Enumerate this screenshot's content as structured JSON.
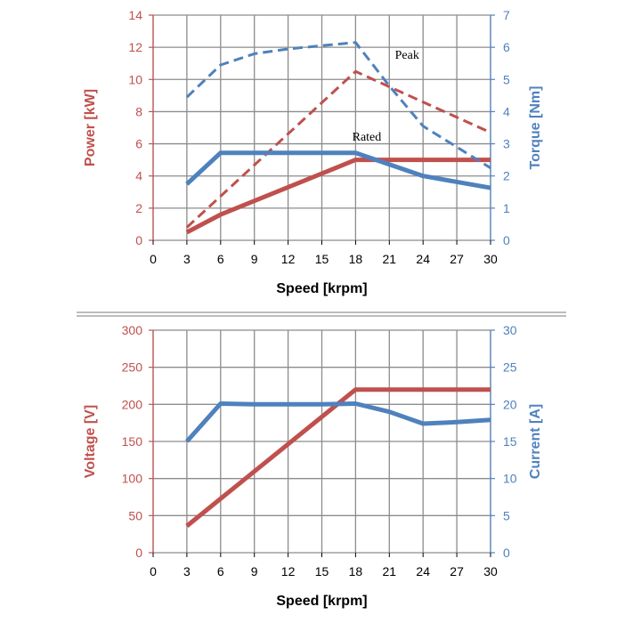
{
  "colors": {
    "red": "#c0504d",
    "blue": "#4f81bd",
    "grid": "#8c8c8c",
    "divider": "#a6a6a6"
  },
  "chart_data": [
    {
      "type": "line",
      "title": "",
      "xlabel": "Speed [krpm]",
      "ylabel_left": "Power [kW]",
      "ylabel_right": "Torque [Nm]",
      "x_ticks": [
        0,
        3,
        6,
        9,
        12,
        15,
        18,
        21,
        24,
        27,
        30
      ],
      "xlim": [
        0,
        30
      ],
      "ylim_left": [
        0,
        14
      ],
      "ylim_right": [
        0,
        7
      ],
      "y_ticks_left": [
        0,
        2,
        4,
        6,
        8,
        10,
        12,
        14
      ],
      "y_ticks_right": [
        0,
        1,
        2,
        3,
        4,
        5,
        6,
        7
      ],
      "grid": true,
      "annotations": [
        {
          "text": "Peak",
          "x": 21.5,
          "y_left": 11.3
        },
        {
          "text": "Rated",
          "x": 17.7,
          "y_left": 6.2
        }
      ],
      "series": [
        {
          "axis": "left",
          "color": "red",
          "style": "solid",
          "x": [
            3,
            6,
            18,
            30
          ],
          "y": [
            0.5,
            1.6,
            5.0,
            5.0
          ]
        },
        {
          "axis": "left",
          "color": "red",
          "style": "dashed",
          "x": [
            3,
            18,
            30
          ],
          "y": [
            0.8,
            10.5,
            6.7
          ]
        },
        {
          "axis": "right",
          "color": "blue",
          "style": "solid",
          "x": [
            3,
            6,
            18,
            24,
            30
          ],
          "y": [
            1.75,
            2.72,
            2.72,
            2.0,
            1.63
          ]
        },
        {
          "axis": "right",
          "color": "blue",
          "style": "dashed",
          "x": [
            3,
            6,
            9,
            12,
            15,
            18,
            21,
            24,
            30
          ],
          "y": [
            4.45,
            5.45,
            5.8,
            5.95,
            6.05,
            6.15,
            4.8,
            3.55,
            2.25
          ]
        }
      ]
    },
    {
      "type": "line",
      "title": "",
      "xlabel": "Speed [krpm]",
      "ylabel_left": "Voltage [V]",
      "ylabel_right": "Current [A]",
      "x_ticks": [
        0,
        3,
        6,
        9,
        12,
        15,
        18,
        21,
        24,
        27,
        30
      ],
      "xlim": [
        0,
        30
      ],
      "ylim_left": [
        0,
        300
      ],
      "ylim_right": [
        0,
        30
      ],
      "y_ticks_left": [
        0,
        50,
        100,
        150,
        200,
        250,
        300
      ],
      "y_ticks_right": [
        0,
        5,
        10,
        15,
        20,
        25,
        30
      ],
      "grid": true,
      "annotations": [],
      "series": [
        {
          "axis": "left",
          "color": "red",
          "style": "solid",
          "x": [
            3,
            18,
            30
          ],
          "y": [
            36,
            220,
            220
          ]
        },
        {
          "axis": "right",
          "color": "blue",
          "style": "solid",
          "x": [
            3,
            6,
            9,
            12,
            15,
            18,
            21,
            24,
            27,
            30
          ],
          "y": [
            15,
            20.1,
            20.0,
            20.0,
            20.0,
            20.1,
            19.0,
            17.4,
            17.6,
            17.9
          ]
        }
      ]
    }
  ]
}
